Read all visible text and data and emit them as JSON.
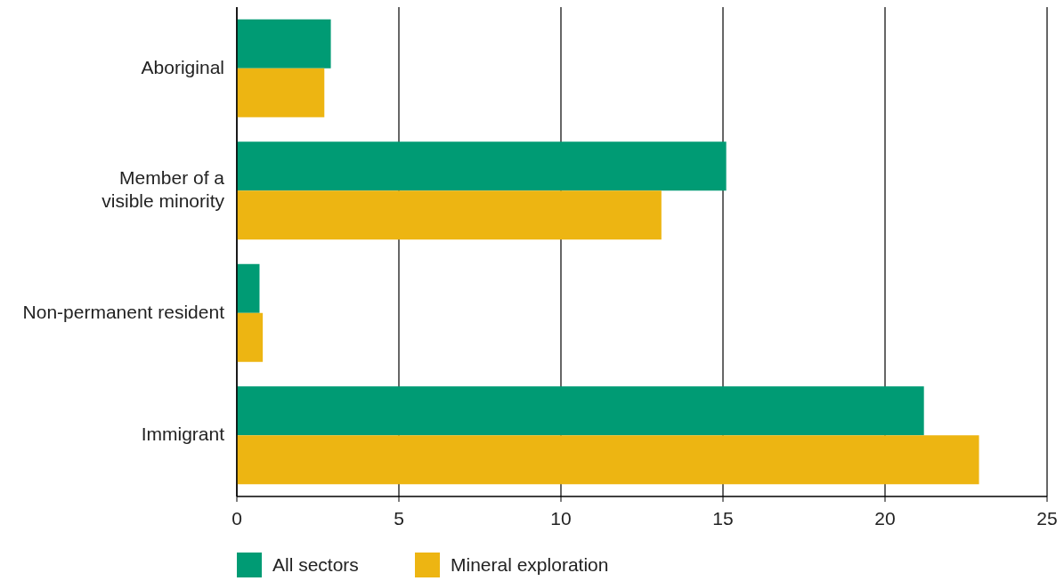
{
  "chart_data": {
    "type": "bar",
    "orientation": "horizontal",
    "categories": [
      "Aboriginal",
      "Member of a visible minority",
      "Non-permanent resident",
      "Immigrant"
    ],
    "series": [
      {
        "name": "All sectors",
        "color": "#009b74",
        "values": [
          2.9,
          15.1,
          0.7,
          21.2
        ]
      },
      {
        "name": "Mineral exploration",
        "color": "#edb512",
        "values": [
          2.7,
          13.1,
          0.8,
          22.9
        ]
      }
    ],
    "xlim": [
      0,
      25
    ],
    "xticks": [
      0,
      5,
      10,
      15,
      20,
      25
    ],
    "grid": "x",
    "legend": "bottom left"
  }
}
